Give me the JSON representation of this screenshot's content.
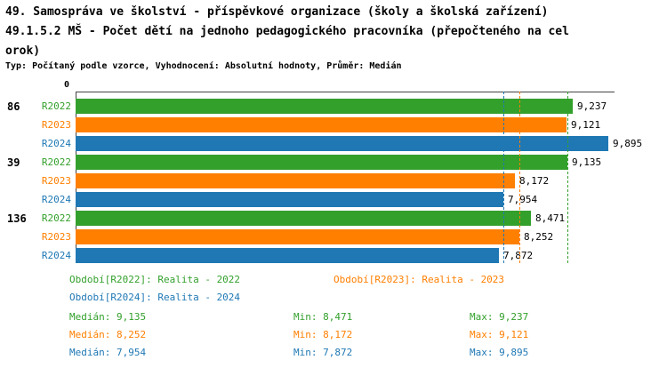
{
  "header": {
    "line1": "49. Samospráva ve školství - příspěvkové organizace (školy a školská zařízení)",
    "line2": "49.1.5.2 MŠ - Počet dětí na jednoho pedagogického pracovníka (přepočteného na cel",
    "line3": "orok)",
    "subtitle": "Typ: Počítaný podle vzorce, Vyhodnocení: Absolutní hodnoty, Průměr: Medián"
  },
  "chart_data": {
    "type": "bar",
    "orientation": "horizontal",
    "title": "49.1.5.2 MŠ - Počet dětí na jednoho pedagogického pracovníka (přepočteného na celorok)",
    "axis_origin_label": "0",
    "x_min": 0,
    "x_max": 10.0,
    "grid": false,
    "series": [
      "R2022",
      "R2023",
      "R2024"
    ],
    "series_colors": [
      "#33a02c",
      "#ff7f00",
      "#1f78b4"
    ],
    "groups": [
      {
        "label": "86",
        "values": [
          9.237,
          9.121,
          9.895
        ],
        "value_labels": [
          "9,237",
          "9,121",
          "9,895"
        ]
      },
      {
        "label": "39",
        "values": [
          9.135,
          8.172,
          7.954
        ],
        "value_labels": [
          "9,135",
          "8,172",
          "7,954"
        ]
      },
      {
        "label": "136",
        "values": [
          8.471,
          8.252,
          7.872
        ],
        "value_labels": [
          "8,471",
          "8,252",
          "7,872"
        ]
      }
    ],
    "median_lines": [
      {
        "series": "R2022",
        "value": 9.135,
        "color": "#33a02c"
      },
      {
        "series": "R2023",
        "value": 8.252,
        "color": "#ff7f00"
      },
      {
        "series": "R2024",
        "value": 7.954,
        "color": "#1f78b4"
      }
    ]
  },
  "legend": [
    {
      "label": "Období[R2022]: Realita - 2022",
      "color": "#33a02c"
    },
    {
      "label": "Období[R2023]: Realita - 2023",
      "color": "#ff7f00"
    },
    {
      "label": "Období[R2024]: Realita - 2024",
      "color": "#1f78b4"
    }
  ],
  "stats": [
    {
      "median": "Medián: 9,135",
      "min": "Min: 8,471",
      "max": "Max: 9,237",
      "color": "#33a02c"
    },
    {
      "median": "Medián: 8,252",
      "min": "Min: 8,172",
      "max": "Max: 9,121",
      "color": "#ff7f00"
    },
    {
      "median": "Medián: 7,954",
      "min": "Min: 7,872",
      "max": "Max: 9,895",
      "color": "#1f78b4"
    }
  ]
}
